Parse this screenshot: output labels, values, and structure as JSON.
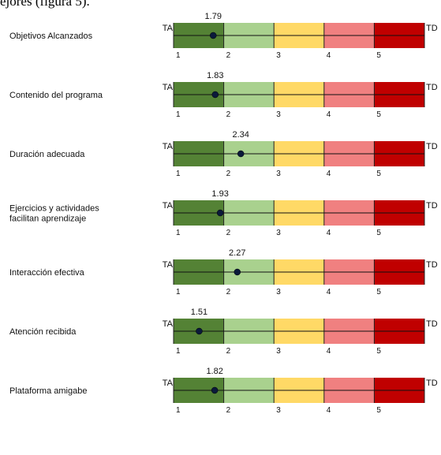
{
  "page_text": {
    "caption_fragment": "ejores (figura 5)."
  },
  "chart_data": {
    "type": "scatter",
    "scale_ticks": [
      1,
      2,
      3,
      4,
      5
    ],
    "scale_range": [
      1,
      6
    ],
    "left_label": "TA",
    "right_label": "TD",
    "band_colors": [
      "#548235",
      "#a9d18e",
      "#ffd966",
      "#f08080",
      "#c00000"
    ],
    "marker_color": "#0b1a3a",
    "items": [
      {
        "label": [
          "Objetivos Alcanzados"
        ],
        "value": 1.79,
        "value_label": "1.79"
      },
      {
        "label": [
          "Contenido del programa"
        ],
        "value": 1.83,
        "value_label": "1.83"
      },
      {
        "label": [
          "Duración adecuada"
        ],
        "value": 2.34,
        "value_label": "2.34"
      },
      {
        "label": [
          "Ejercicios y actividades",
          "facilitan aprendizaje"
        ],
        "value": 1.93,
        "value_label": "1.93"
      },
      {
        "label": [
          "Interacción efectiva"
        ],
        "value": 2.27,
        "value_label": "2.27"
      },
      {
        "label": [
          "Atención recibida"
        ],
        "value": 1.51,
        "value_label": "1.51"
      },
      {
        "label": [
          "Plataforma amigabe"
        ],
        "value": 1.82,
        "value_label": "1.82"
      }
    ]
  }
}
